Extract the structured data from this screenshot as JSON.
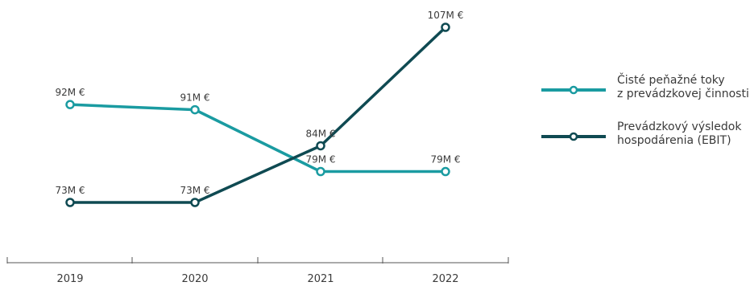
{
  "chart_data": {
    "type": "line",
    "categories": [
      "2019",
      "2020",
      "2021",
      "2022"
    ],
    "series": [
      {
        "name": "Čisté peňažné toky z prevádzkovej činnosti",
        "legend_lines": [
          "Čisté peňažné toky",
          "z prevádzkovej činnosti"
        ],
        "values": [
          92,
          91,
          79,
          79
        ],
        "labels": [
          "92M €",
          "91M €",
          "79M €",
          "79M €"
        ],
        "color": "#1a9ba1"
      },
      {
        "name": "Prevádzkový výsledok hospodárenia (EBIT)",
        "legend_lines": [
          "Prevádzkový výsledok",
          "hospodárenia (EBIT)"
        ],
        "values": [
          73,
          73,
          84,
          107
        ],
        "labels": [
          "73M €",
          "73M €",
          "84M €",
          "107M €"
        ],
        "color": "#0f4a52"
      }
    ],
    "ylim": [
      60,
      110
    ],
    "grid": false,
    "legend": "right"
  }
}
